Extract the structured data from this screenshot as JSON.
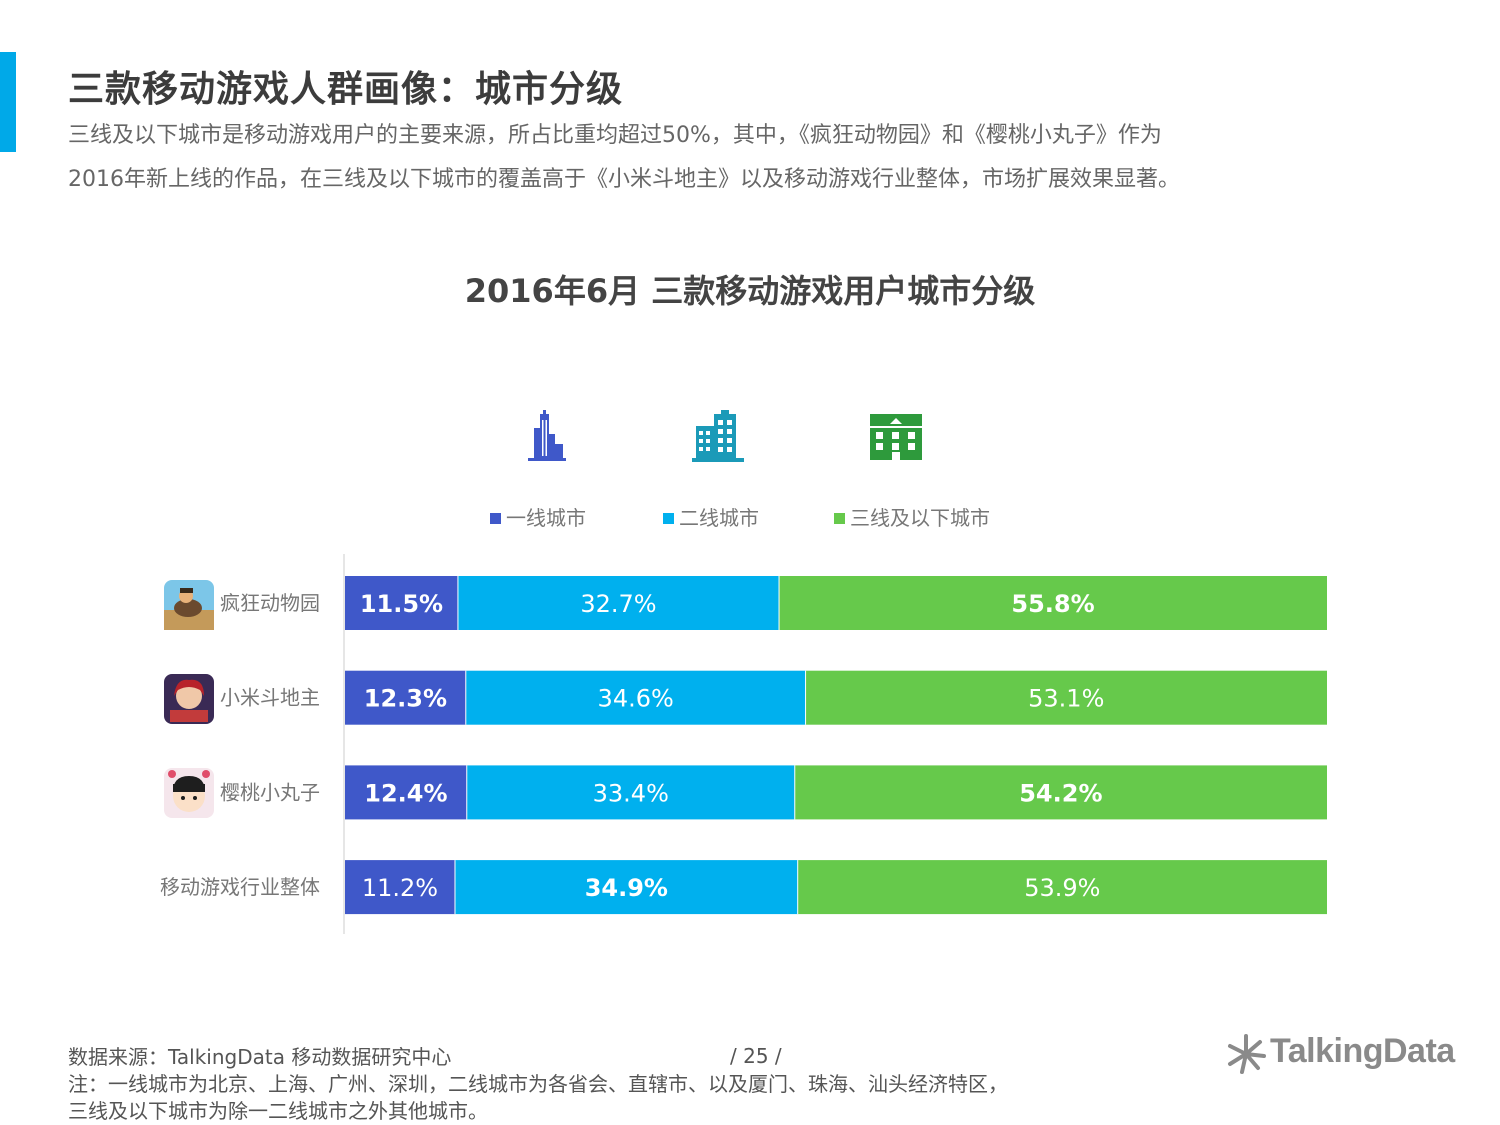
{
  "page": {
    "title": "三款移动游戏人群画像：城市分级",
    "intro_line1": "三线及以下城市是移动游戏用户的主要来源，所占比重均超过50%，其中，《疯狂动物园》和《樱桃小丸子》作为",
    "intro_line2": "2016年新上线的作品，在三线及以下城市的覆盖高于《小米斗地主》以及移动游戏行业整体，市场扩展效果显著。"
  },
  "colors": {
    "accent": "#00a9e8",
    "tier1": "#3f58c9",
    "tier2": "#00b0ee",
    "tier3": "#66c94b"
  },
  "legend_icons": [
    "skyscraper-icon",
    "office-building-icon",
    "apartment-building-icon"
  ],
  "chart_data": {
    "type": "bar",
    "orientation": "horizontal",
    "stacked": true,
    "percent": true,
    "title": "2016年6月 三款移动游戏用户城市分级",
    "categories": [
      "疯狂动物园",
      "小米斗地主",
      "樱桃小丸子",
      "移动游戏行业整体"
    ],
    "series": [
      {
        "name": "一线城市",
        "values": [
          11.5,
          12.3,
          12.4,
          11.2
        ],
        "labels": [
          "11.5%",
          "12.3%",
          "12.4%",
          "11.2%"
        ],
        "bold": [
          true,
          true,
          true,
          false
        ]
      },
      {
        "name": "二线城市",
        "values": [
          32.7,
          34.6,
          33.4,
          34.9
        ],
        "labels": [
          "32.7%",
          "34.6%",
          "33.4%",
          "34.9%"
        ],
        "bold": [
          false,
          false,
          false,
          true
        ]
      },
      {
        "name": "三线及以下城市",
        "values": [
          55.8,
          53.1,
          54.2,
          53.9
        ],
        "labels": [
          "55.8%",
          "53.1%",
          "54.2%",
          "53.9%"
        ],
        "bold": [
          true,
          false,
          true,
          false
        ]
      }
    ],
    "xlim": [
      0,
      100
    ],
    "legend": "top-center",
    "grid": false
  },
  "footer": {
    "source": "数据来源：TalkingData  移动数据研究中心",
    "page_number": "/ 25 /",
    "note_line1": "注：一线城市为北京、上海、广州、深圳，二线城市为各省会、直辖市、以及厦门、珠海、汕头经济特区，",
    "note_line2": "三线及以下城市为除一二线城市之外其他城市。"
  },
  "brand": {
    "name": "TalkingData"
  }
}
